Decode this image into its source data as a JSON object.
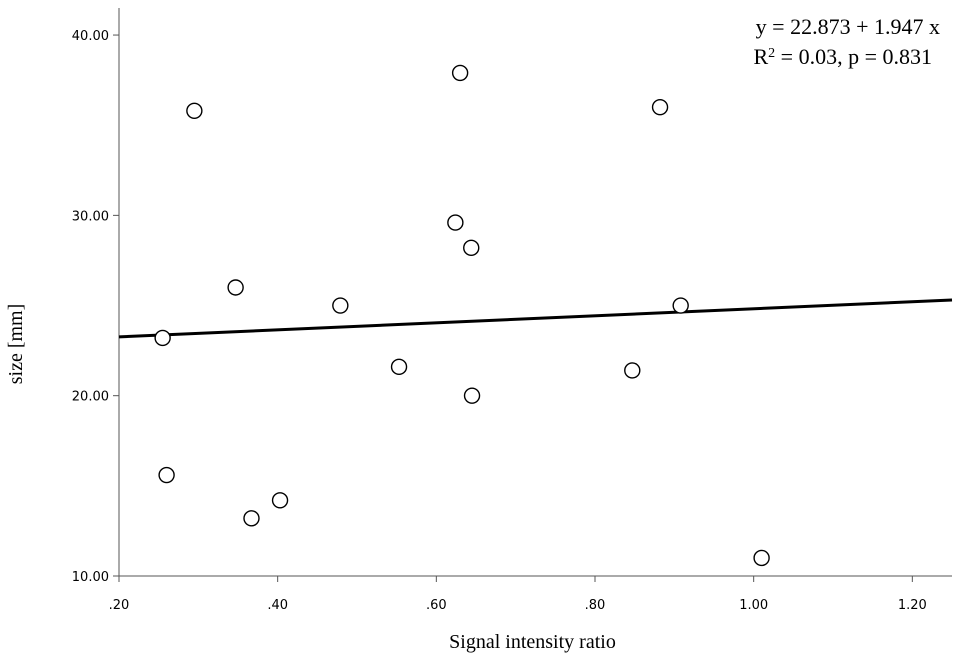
{
  "chart_data": {
    "type": "scatter",
    "title": "",
    "xlabel": "Signal intensity ratio",
    "ylabel": "size [mm]",
    "xlim": [
      0.2,
      1.25
    ],
    "ylim": [
      10,
      41.5
    ],
    "x_ticks": [
      0.2,
      0.4,
      0.6,
      0.8,
      1.0,
      1.2
    ],
    "x_tick_labels": [
      ".20",
      ".40",
      ".60",
      ".80",
      "1.00",
      "1.20"
    ],
    "y_ticks": [
      10,
      20,
      30,
      40
    ],
    "y_tick_labels": [
      "10.00",
      "20.00",
      "30.00",
      "40.00"
    ],
    "grid": false,
    "points": [
      {
        "x": 0.255,
        "y": 23.2
      },
      {
        "x": 0.26,
        "y": 15.6
      },
      {
        "x": 0.295,
        "y": 35.8
      },
      {
        "x": 0.347,
        "y": 26.0
      },
      {
        "x": 0.367,
        "y": 13.2
      },
      {
        "x": 0.403,
        "y": 14.2
      },
      {
        "x": 0.479,
        "y": 25.0
      },
      {
        "x": 0.553,
        "y": 21.6
      },
      {
        "x": 0.624,
        "y": 29.6
      },
      {
        "x": 0.63,
        "y": 37.9
      },
      {
        "x": 0.644,
        "y": 28.2
      },
      {
        "x": 0.645,
        "y": 20.0
      },
      {
        "x": 0.847,
        "y": 21.4
      },
      {
        "x": 0.882,
        "y": 36.0
      },
      {
        "x": 0.908,
        "y": 25.0
      },
      {
        "x": 1.01,
        "y": 11.0
      }
    ],
    "fit": {
      "intercept": 22.873,
      "slope": 1.947,
      "x_range": [
        0.2,
        1.25
      ]
    },
    "annotations": {
      "equation": "y = 22.873 + 1.947 x",
      "r_squared_prefix": "R",
      "r_squared_superscript": "2",
      "r_squared_suffix": " = 0.03, p = 0.831"
    }
  }
}
